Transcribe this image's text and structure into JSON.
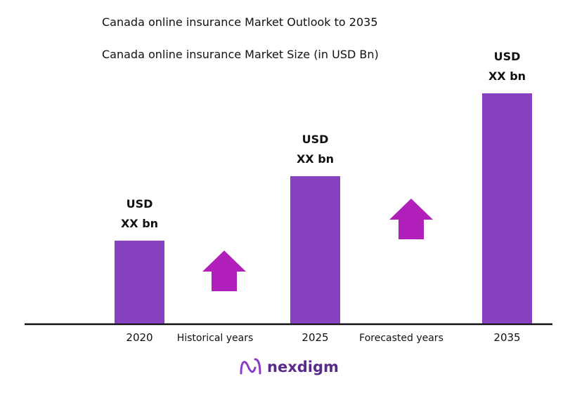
{
  "chart_data": {
    "type": "bar",
    "title": "Canada online insurance Market Outlook to 2035",
    "subtitle": "Canada online insurance Market Size (in USD Bn)",
    "categories": [
      "2020",
      "2025",
      "2035"
    ],
    "values": [
      36,
      64,
      100
    ],
    "value_labels": [
      "USD\nXX bn",
      "USD\nXX bn",
      "USD\nXX bn"
    ],
    "color": "#8740bf",
    "ylim": [
      0,
      100
    ],
    "annotations": [
      "Historical years",
      "Forecasted years"
    ]
  },
  "logo": "nexdigm"
}
